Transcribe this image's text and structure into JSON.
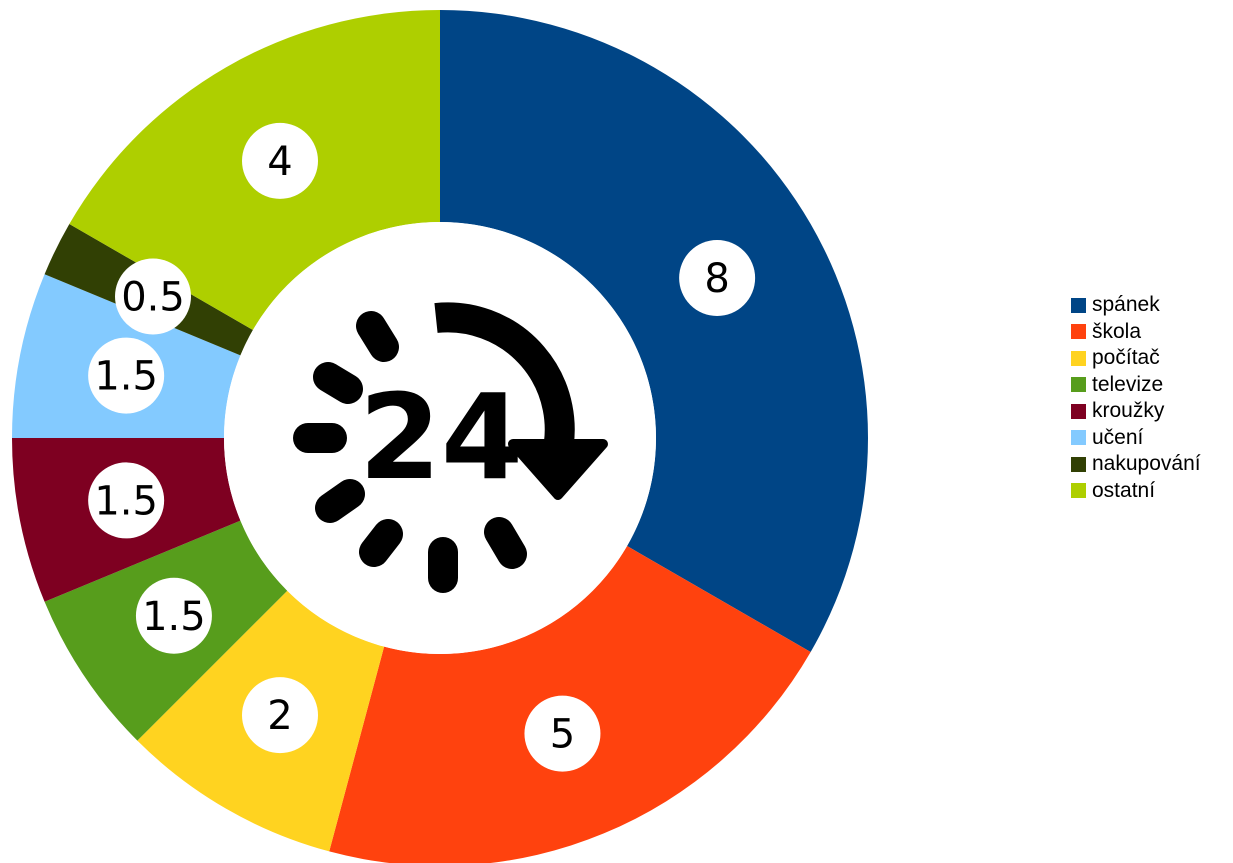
{
  "chart_data": {
    "type": "pie",
    "variant": "donut",
    "unit_total_label": "24",
    "center_icon": "24-hour-clockwise-icon",
    "categories": [
      "spánek",
      "škola",
      "počítač",
      "televize",
      "kroužky",
      "učení",
      "nakupování",
      "ostatní"
    ],
    "values": [
      8,
      5,
      2,
      1.5,
      1.5,
      1.5,
      0.5,
      4
    ],
    "value_labels": [
      "8",
      "5",
      "2",
      "1.5",
      "1.5",
      "1.5",
      "0.5",
      "4"
    ],
    "colors": [
      "#004586",
      "#ff420e",
      "#ffd320",
      "#579d1c",
      "#7e0021",
      "#83caff",
      "#314004",
      "#aecf00"
    ],
    "legend_position": "right",
    "start_angle": "top",
    "direction": "clockwise"
  }
}
